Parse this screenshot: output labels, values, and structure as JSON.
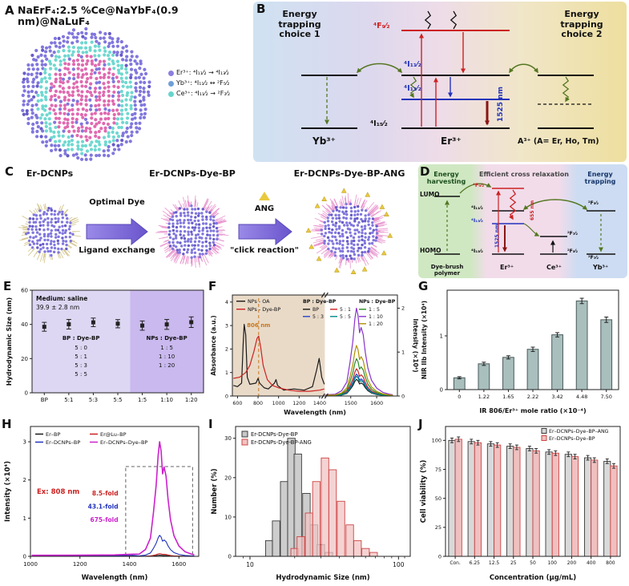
{
  "panel_labels": {
    "A": "A",
    "B": "B",
    "C": "C",
    "D": "D",
    "E": "E",
    "F": "F",
    "G": "G",
    "H": "H",
    "I": "I",
    "J": "J"
  },
  "panelA": {
    "title": "NaErF₄:2.5 %Ce@NaYbF₄(0.9 nm)@NaLuF₄",
    "legend": [
      {
        "color": "#8a7fe0",
        "text": "Er³⁺: ⁴I₁₁⁄₂ ⇝ ⁴I₁₃⁄₂"
      },
      {
        "color": "#6f9fd8",
        "text": "Yb³⁺: ⁴I₁₁⁄₂ ↔ ²F₅⁄₂"
      },
      {
        "color": "#66d4cc",
        "text": "Ce³⁺: ⁴I₁₁⁄₂ → ²F₇⁄₂"
      }
    ],
    "colors": {
      "shell": "#8177dd",
      "shell_dark": "#675cc8",
      "interlayer": "#6fd8d0",
      "core": "#e06ab0"
    }
  },
  "panelB": {
    "choice1": "Energy trapping choice 1",
    "choice2": "Energy trapping choice 2",
    "levels": {
      "f92": "⁴F₉⁄₂",
      "i112": "⁴I₁₁⁄₂",
      "i132": "⁴I₁₃⁄₂",
      "i152": "⁴I₁₅⁄₂"
    },
    "emission": "1525 nm",
    "ions": {
      "yb": "Yb³⁺",
      "er": "Er³⁺",
      "a": "A³⁺ (A= Er, Ho, Tm)"
    }
  },
  "panelC": {
    "np1": "Er-DCNPs",
    "np2": "Er-DCNPs-Dye-BP",
    "np3": "Er-DCNPs-Dye-BP-ANG",
    "step1_top": "Optimal Dye",
    "step1_bottom": "Ligand exchange",
    "step2_top": "ANG",
    "step2_bottom": "\"click reaction\""
  },
  "panelD": {
    "harvest": "Energy harvesting",
    "cross": "Efficient cross relaxation",
    "trap": "Energy trapping",
    "lumo": "LUMO",
    "homo": "HOMO",
    "levels": {
      "f92": "⁴F₉⁄₂",
      "i112": "⁴I₁₁⁄₂",
      "i132": "⁴I₁₃⁄₂",
      "i152": "⁴I₁₅⁄₂",
      "ce_f72": "²F₇⁄₂",
      "ce_f52": "²F₅⁄₂",
      "yb_f52": "²F₅⁄₂",
      "yb_f72": "²F₇⁄₂"
    },
    "nm655": "655 nm",
    "nm1525": "1525 nm",
    "ions": {
      "dye": "Dye-brush polymer",
      "er": "Er³⁺",
      "ce": "Ce³⁺",
      "yb": "Yb³⁺"
    }
  },
  "chart_data": [
    {
      "id": "E",
      "type": "scatter",
      "ylabel": "Hydrodynamic Size (nm)",
      "ylim": [
        0,
        60
      ],
      "yticks": [
        0,
        20,
        40,
        60
      ],
      "categories": [
        "BP",
        "5:1",
        "5:3",
        "5:5",
        "1:5",
        "1:10",
        "1:20"
      ],
      "values": [
        38.6,
        40.1,
        41.2,
        40.4,
        39.3,
        40.0,
        41.3
      ],
      "errors": [
        2.6,
        2.8,
        2.5,
        2.4,
        2.7,
        2.9,
        3.1
      ],
      "region_split": 4,
      "region_colors": [
        "#ddd7f3",
        "#c9b9ee"
      ],
      "marker_color": "#222222",
      "annotations": {
        "medium": "Medium: saline",
        "size": "39.9 ± 2.8 nm",
        "left_header": "BP : Dye-BP",
        "left_rows": [
          "5 : 0",
          "5 : 1",
          "5 : 3",
          "5 : 5"
        ],
        "right_header": "NPs : Dye-BP",
        "right_rows": [
          "1 : 5",
          "1 : 10",
          "1 : 20"
        ]
      }
    },
    {
      "id": "F",
      "type": "dual-spectra",
      "xlabel": "Wavelength (nm)",
      "ylabel_left": "Absorbance (a.u.)",
      "ylabel_right": "Intensity (×10⁴)",
      "left_xlim": [
        550,
        1450
      ],
      "left_xticks": [
        600,
        800,
        1000,
        1200,
        1400
      ],
      "right_xlim": [
        1400,
        1680
      ],
      "right_xticks": [
        1500,
        1600
      ],
      "left_ylim": [
        0,
        4.3
      ],
      "left_yticks": [
        0,
        1,
        2,
        3,
        4
      ],
      "right_ylim": [
        0,
        2.3
      ],
      "right_yticks": [
        0,
        1,
        2
      ],
      "left_bg": "#e9dac8",
      "dashed_line": {
        "x": 806,
        "label": "806 nm",
        "color": "#c87820"
      },
      "abs_series": [
        {
          "name": "NPs - OA",
          "color": "#1a1a1a",
          "points": [
            [
              560,
              0.45
            ],
            [
              600,
              0.4
            ],
            [
              640,
              0.55
            ],
            [
              655,
              2.2
            ],
            [
              665,
              3.05
            ],
            [
              680,
              2.6
            ],
            [
              695,
              0.8
            ],
            [
              720,
              0.5
            ],
            [
              780,
              0.55
            ],
            [
              800,
              0.75
            ],
            [
              815,
              0.55
            ],
            [
              860,
              0.35
            ],
            [
              900,
              0.3
            ],
            [
              960,
              0.55
            ],
            [
              975,
              0.7
            ],
            [
              990,
              0.45
            ],
            [
              1050,
              0.25
            ],
            [
              1150,
              0.3
            ],
            [
              1250,
              0.25
            ],
            [
              1330,
              0.4
            ],
            [
              1370,
              1.1
            ],
            [
              1395,
              1.6
            ],
            [
              1420,
              0.8
            ],
            [
              1445,
              0.5
            ]
          ]
        },
        {
          "name": "NPs - Dye-BP",
          "color": "#cc2222",
          "points": [
            [
              560,
              0.75
            ],
            [
              620,
              0.8
            ],
            [
              680,
              1.0
            ],
            [
              720,
              1.3
            ],
            [
              760,
              1.9
            ],
            [
              790,
              2.45
            ],
            [
              806,
              2.55
            ],
            [
              825,
              2.1
            ],
            [
              850,
              1.3
            ],
            [
              890,
              0.7
            ],
            [
              940,
              0.45
            ],
            [
              1000,
              0.35
            ],
            [
              1100,
              0.25
            ],
            [
              1200,
              0.2
            ],
            [
              1300,
              0.2
            ],
            [
              1400,
              0.25
            ],
            [
              1445,
              0.3
            ]
          ]
        }
      ],
      "em_legend_header1": "BP : Dye-BP",
      "em_legend_header2": "NPs : Dye-BP",
      "em_series": [
        {
          "name": "BP",
          "color": "#1a1a1a",
          "amp": 0.38
        },
        {
          "name": "5 : 1",
          "color": "#cc2222",
          "amp": 0.62
        },
        {
          "name": "5 : 3",
          "color": "#2244cc",
          "amp": 0.5
        },
        {
          "name": "5 : 5",
          "color": "#008888",
          "amp": 0.45
        },
        {
          "name": "1 : 5",
          "color": "#2e8b22",
          "amp": 0.85
        },
        {
          "name": "1 : 10",
          "color": "#8833cc",
          "amp": 2.0
        },
        {
          "name": "1 : 20",
          "color": "#b09000",
          "amp": 1.15
        }
      ]
    },
    {
      "id": "G",
      "type": "bar",
      "ylabel": "NIR IIb Intensity (×10⁴)",
      "xlabel": "IR 806/Er³⁺ mole ratio (×10⁻⁴)",
      "categories": [
        "0",
        "1.22",
        "1.65",
        "2.22",
        "3.42",
        "4.48",
        "7.50"
      ],
      "values": [
        0.22,
        0.48,
        0.6,
        0.75,
        1.02,
        1.65,
        1.3
      ],
      "errors": [
        0.02,
        0.03,
        0.03,
        0.04,
        0.04,
        0.05,
        0.05
      ],
      "ylim": [
        0,
        1.85
      ],
      "yticks": [
        0,
        1
      ],
      "bar_color": "#a9bfbd",
      "bar_edge": "#4a5a5a"
    },
    {
      "id": "H",
      "type": "spectra",
      "xlabel": "Wavelength (nm)",
      "ylabel": "Intensity (×10⁴)",
      "xlim": [
        1000,
        1680
      ],
      "xticks": [
        1000,
        1200,
        1400,
        1600
      ],
      "ylim": [
        0,
        3.4
      ],
      "yticks": [
        0,
        1,
        2,
        3
      ],
      "ex_label": "Ex: 808 nm",
      "legend": [
        {
          "name": "Er–BP",
          "color": "#1a1a1a"
        },
        {
          "name": "Er@Lu–BP",
          "color": "#cc2222"
        },
        {
          "name": "Er–DCNPs–BP",
          "color": "#2233bb"
        },
        {
          "name": "Er–DCNPs–Dye–BP",
          "color": "#cc22cc"
        }
      ],
      "amps": [
        0.03,
        0.07,
        0.55,
        3.0
      ],
      "fold_labels": [
        {
          "text": "8.5-fold",
          "color": "#cc2222"
        },
        {
          "text": "43.1-fold",
          "color": "#2233bb"
        },
        {
          "text": "675-fold",
          "color": "#cc22cc"
        }
      ]
    },
    {
      "id": "I",
      "type": "hist",
      "xlabel": "Hydrodynamic Size (nm)",
      "ylabel": "Number (%)",
      "xlim": [
        8,
        120
      ],
      "xticks": [
        10,
        100
      ],
      "minor_ticks": [
        9,
        20,
        30,
        40,
        50,
        60,
        70,
        80,
        90,
        110
      ],
      "ylim": [
        0,
        33
      ],
      "yticks": [
        0,
        10,
        20,
        30
      ],
      "series": [
        {
          "name": "Er-DCNPs-Dye-BP",
          "edge": "#3a3a3a",
          "fill": "#c8c8c8",
          "centers": [
            13.5,
            15,
            17,
            19,
            21,
            24,
            27,
            30,
            34
          ],
          "values": [
            4,
            9,
            19,
            30,
            26,
            16,
            8,
            3,
            1
          ]
        },
        {
          "name": "Er-DCNPs-Dye-BP-ANG",
          "edge": "#cc4444",
          "fill": "#f2c4c4",
          "centers": [
            20,
            22,
            25,
            28,
            32,
            36,
            41,
            47,
            53,
            60,
            68
          ],
          "values": [
            2,
            5,
            11,
            19,
            25,
            22,
            14,
            8,
            4,
            2,
            1
          ]
        }
      ]
    },
    {
      "id": "J",
      "type": "grouped-bar",
      "ylabel": "Cell viability (%)",
      "xlabel": "Concentration (μg/mL)",
      "categories": [
        "Con.",
        "6.25",
        "12.5",
        "25",
        "50",
        "100",
        "200",
        "400",
        "800"
      ],
      "ylim": [
        0,
        112
      ],
      "yticks": [
        0,
        25,
        50,
        75,
        100
      ],
      "series": [
        {
          "name": "Er–DCNPs–Dye–BP–ANG",
          "edge": "#3a3a3a",
          "fill": "#d9d9d9",
          "values": [
            100,
            99,
            97,
            95,
            93,
            90,
            88,
            85,
            82
          ],
          "errors": [
            2,
            2,
            2,
            2,
            2,
            2,
            2,
            2,
            2
          ]
        },
        {
          "name": "Er–DCNPs–Dye–BP",
          "edge": "#cc4444",
          "fill": "#f0c0c0",
          "values": [
            101,
            98,
            96,
            94,
            91,
            89,
            86,
            83,
            78
          ],
          "errors": [
            2,
            2,
            2,
            2,
            2,
            2,
            2,
            2,
            2
          ]
        }
      ]
    }
  ]
}
